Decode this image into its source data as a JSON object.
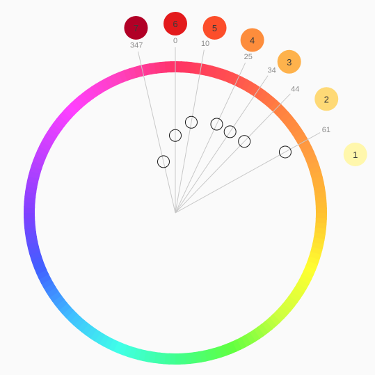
{
  "ring_colors": [
    "#ff3366",
    "#ff5050",
    "#ff8040",
    "#ffa040",
    "#ffc030",
    "#ffff30",
    "#ccff40",
    "#60ff40",
    "#40ff90",
    "#40ffe8",
    "#40c0ff",
    "#4060ff",
    "#8040ff",
    "#c040ff",
    "#ff40ff",
    "#ff40c0",
    "#ff3366"
  ],
  "hues": [
    {
      "degree": "347",
      "handle_radius_fraction": 0.36
    },
    {
      "degree": "0",
      "handle_radius_fraction": 0.53
    },
    {
      "degree": "10",
      "handle_radius_fraction": 0.63
    },
    {
      "degree": "25",
      "handle_radius_fraction": 0.67
    },
    {
      "degree": "34",
      "handle_radius_fraction": 0.67
    },
    {
      "degree": "44",
      "handle_radius_fraction": 0.68
    },
    {
      "degree": "61",
      "handle_radius_fraction": 0.86
    }
  ],
  "swatches": [
    {
      "label": "1",
      "color": "#fff7ac"
    },
    {
      "label": "2",
      "color": "#fed976"
    },
    {
      "label": "3",
      "color": "#feb24c"
    },
    {
      "label": "4",
      "color": "#fd8d3c"
    },
    {
      "label": "5",
      "color": "#fc4e2a"
    },
    {
      "label": "6",
      "color": "#e31a1c"
    },
    {
      "label": "7",
      "color": "#b10026"
    }
  ]
}
